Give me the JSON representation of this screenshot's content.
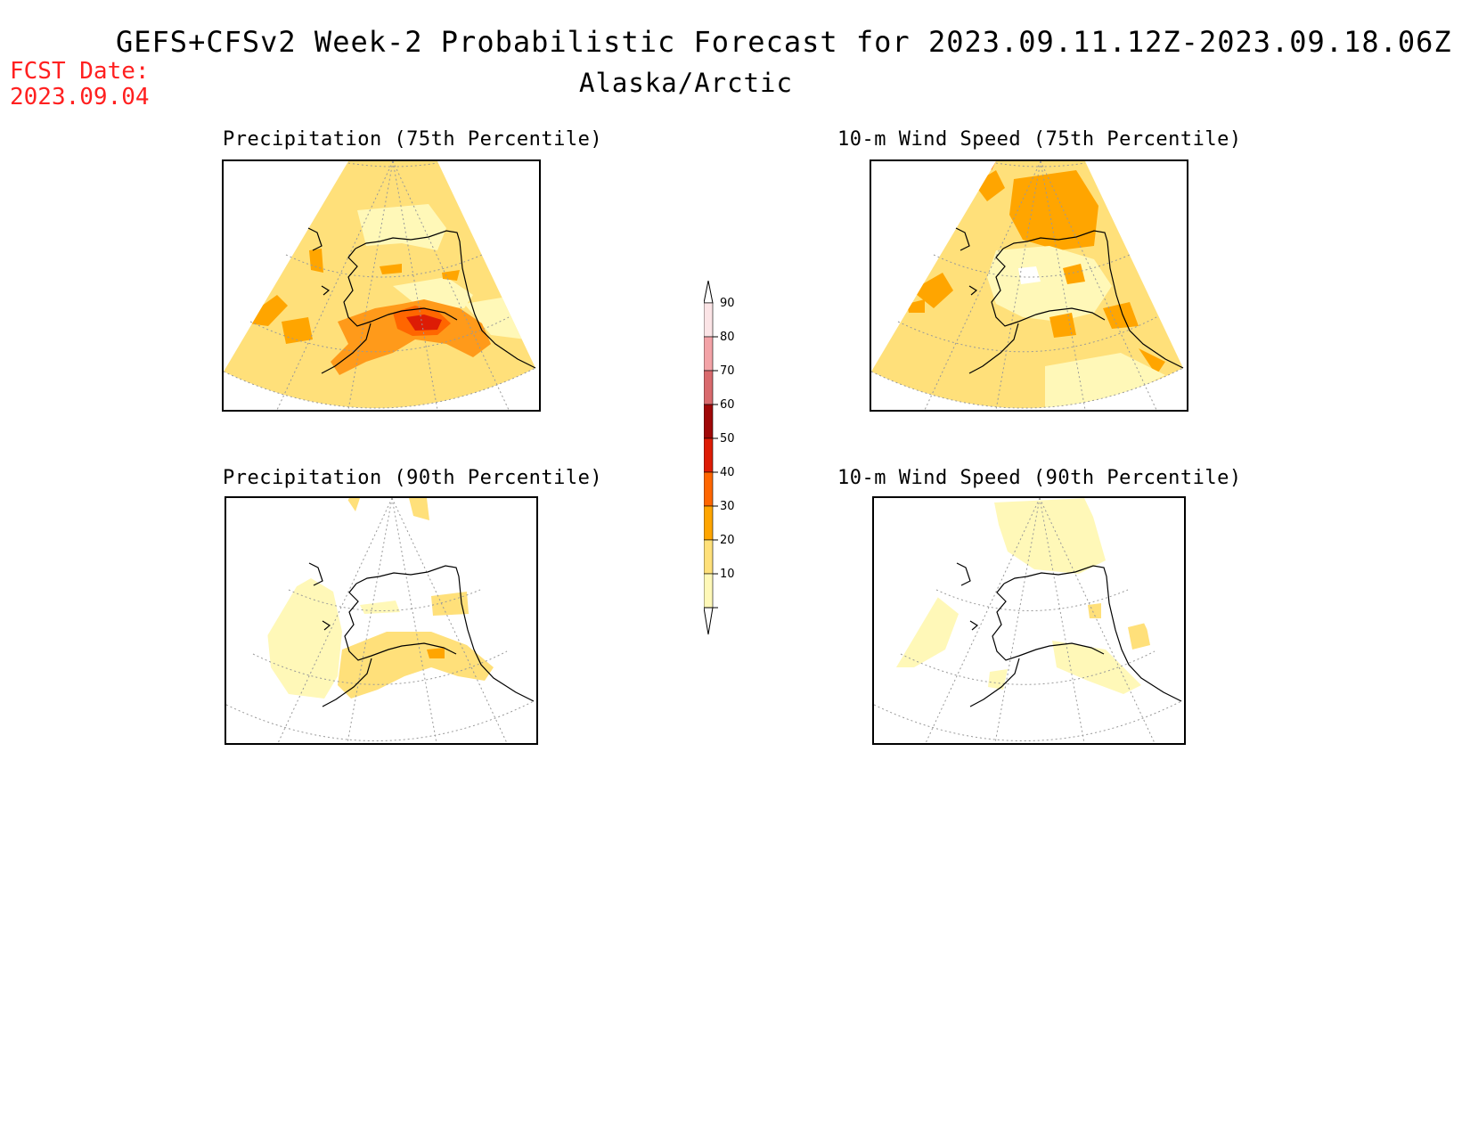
{
  "header": {
    "title": "GEFS+CFSv2 Week-2 Probabilistic Forecast for 2023.09.11.12Z-2023.09.18.06Z",
    "region": "Alaska/Arctic",
    "fcst_label": "FCST Date:",
    "fcst_date": "2023.09.04"
  },
  "panels": [
    {
      "id": "precip75",
      "title": "Precipitation (75th Percentile)"
    },
    {
      "id": "wind75",
      "title": "10-m Wind Speed (75th Percentile)"
    },
    {
      "id": "precip90",
      "title": "Precipitation (90th Percentile)"
    },
    {
      "id": "wind90",
      "title": "10-m Wind Speed (90th Percentile)"
    }
  ],
  "colorbar": {
    "levels": [
      {
        "label": "90",
        "color": "#fbe4e6"
      },
      {
        "label": "80",
        "color": "#f3a3a7"
      },
      {
        "label": "70",
        "color": "#d96a6d"
      },
      {
        "label": "60",
        "color": "#a00808"
      },
      {
        "label": "50",
        "color": "#dd1c05"
      },
      {
        "label": "40",
        "color": "#ff6600"
      },
      {
        "label": "30",
        "color": "#ffa500"
      },
      {
        "label": "20",
        "color": "#ffe07a"
      },
      {
        "label": "10",
        "color": "#fff8b8"
      }
    ]
  }
}
